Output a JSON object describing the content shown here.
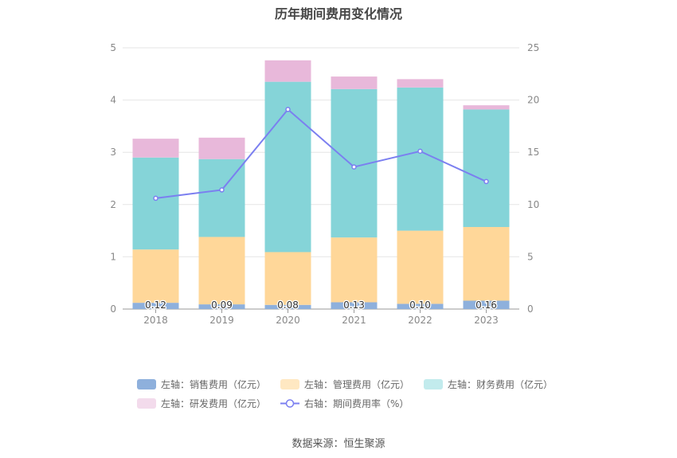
{
  "title": "历年期间费用变化情况",
  "source": "数据来源：恒生聚源",
  "chart_data": {
    "type": "bar",
    "stacked": true,
    "categories": [
      "2018",
      "2019",
      "2020",
      "2021",
      "2022",
      "2023"
    ],
    "left_axis": {
      "min": 0,
      "max": 5,
      "ticks": [
        "0",
        "1",
        "2",
        "3",
        "4",
        "5"
      ]
    },
    "right_axis": {
      "min": 0,
      "max": 25,
      "ticks": [
        "0",
        "5",
        "10",
        "15",
        "20",
        "25"
      ]
    },
    "grid": true,
    "legend_position": "bottom",
    "series": [
      {
        "name": "左轴：销售费用（亿元）",
        "axis": "left",
        "type": "bar",
        "color": "#8eb0dc",
        "values": [
          0.12,
          0.09,
          0.08,
          0.13,
          0.1,
          0.16
        ],
        "labels": [
          "0.12",
          "0.09",
          "0.08",
          "0.13",
          "0.10",
          "0.16"
        ]
      },
      {
        "name": "左轴：管理费用（亿元）",
        "axis": "left",
        "type": "bar",
        "color": "#ffd799",
        "values": [
          1.02,
          1.29,
          1.01,
          1.24,
          1.4,
          1.41
        ]
      },
      {
        "name": "左轴：财务费用（亿元）",
        "axis": "left",
        "type": "bar",
        "color": "#85d4d8",
        "values": [
          1.76,
          1.49,
          3.26,
          2.84,
          2.74,
          2.25
        ]
      },
      {
        "name": "左轴：研发费用（亿元）",
        "axis": "left",
        "type": "bar",
        "color": "#e8b8da",
        "values": [
          0.36,
          0.41,
          0.41,
          0.24,
          0.16,
          0.08
        ]
      },
      {
        "name": "右轴：期间费用率（%）",
        "axis": "right",
        "type": "line",
        "color": "#7b7ff0",
        "values": [
          10.6,
          11.4,
          19.1,
          13.6,
          15.1,
          12.2
        ]
      }
    ]
  }
}
